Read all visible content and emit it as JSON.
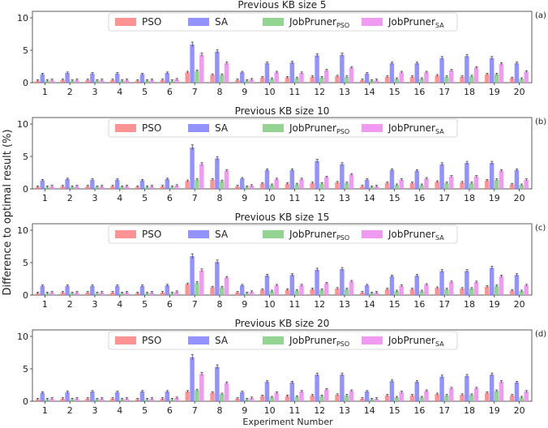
{
  "figure": {
    "ylabel": "Difference to optimal result (%)",
    "xlabel": "Experiment Number"
  },
  "series_colors": [
    "#ff8080",
    "#8080ff",
    "#80cc80",
    "#ee88ee"
  ],
  "chart_data": [
    {
      "type": "bar",
      "panel_label": "(a)",
      "title": "Previous KB size 5",
      "categories": [
        "1",
        "2",
        "3",
        "4",
        "5",
        "6",
        "7",
        "8",
        "9",
        "10",
        "11",
        "12",
        "13",
        "14",
        "15",
        "16",
        "17",
        "18",
        "19",
        "20"
      ],
      "ylim": [
        0,
        11
      ],
      "yticks": [
        "0",
        "5",
        "10"
      ],
      "grid": false,
      "legend": "top-center",
      "series": [
        {
          "name": "PSO",
          "sub": "",
          "values": [
            0.3,
            0.4,
            0.4,
            0.4,
            0.3,
            0.4,
            1.6,
            1.2,
            0.4,
            0.8,
            0.8,
            0.9,
            1.0,
            0.4,
            0.9,
            0.9,
            1.1,
            0.9,
            1.3,
            0.7
          ]
        },
        {
          "name": "SA",
          "sub": "",
          "values": [
            1.3,
            1.5,
            1.4,
            1.4,
            1.3,
            1.5,
            5.9,
            4.8,
            1.6,
            3.0,
            3.1,
            4.2,
            4.3,
            1.4,
            3.0,
            3.0,
            3.8,
            4.1,
            3.8,
            3.0
          ]
        },
        {
          "name": "JobPruner",
          "sub": "PSO",
          "values": [
            0.3,
            0.3,
            0.3,
            0.3,
            0.3,
            0.3,
            1.8,
            1.2,
            0.3,
            0.6,
            0.7,
            0.8,
            0.9,
            0.3,
            0.6,
            0.6,
            0.9,
            1.0,
            1.3,
            0.6
          ]
        },
        {
          "name": "JobPruner",
          "sub": "SA",
          "values": [
            0.4,
            0.4,
            0.4,
            0.4,
            0.4,
            0.5,
            4.3,
            3.0,
            0.5,
            1.6,
            1.5,
            1.9,
            2.3,
            0.4,
            1.6,
            1.6,
            1.9,
            2.3,
            2.9,
            1.7
          ]
        }
      ]
    },
    {
      "type": "bar",
      "panel_label": "(b)",
      "title": "Previous KB size 10",
      "categories": [
        "1",
        "2",
        "3",
        "4",
        "5",
        "6",
        "7",
        "8",
        "9",
        "10",
        "11",
        "12",
        "13",
        "14",
        "15",
        "16",
        "17",
        "18",
        "19",
        "20"
      ],
      "ylim": [
        0,
        11
      ],
      "yticks": [
        "0",
        "5",
        "10"
      ],
      "grid": false,
      "legend": "top-center",
      "series": [
        {
          "name": "PSO",
          "sub": "",
          "values": [
            0.3,
            0.4,
            0.4,
            0.4,
            0.3,
            0.4,
            1.2,
            1.4,
            0.4,
            0.8,
            0.8,
            0.9,
            1.0,
            0.4,
            0.9,
            0.9,
            1.1,
            1.0,
            1.3,
            0.7
          ]
        },
        {
          "name": "SA",
          "sub": "",
          "values": [
            1.3,
            1.5,
            1.4,
            1.4,
            1.3,
            1.5,
            6.4,
            4.7,
            1.6,
            2.9,
            2.9,
            4.3,
            3.8,
            1.4,
            2.9,
            2.8,
            3.8,
            4.0,
            4.0,
            2.9
          ]
        },
        {
          "name": "JobPruner",
          "sub": "PSO",
          "values": [
            0.3,
            0.3,
            0.3,
            0.3,
            0.3,
            0.3,
            1.4,
            1.2,
            0.3,
            0.6,
            0.7,
            0.8,
            0.9,
            0.3,
            0.6,
            0.6,
            0.9,
            0.9,
            1.4,
            0.6
          ]
        },
        {
          "name": "JobPruner",
          "sub": "SA",
          "values": [
            0.4,
            0.4,
            0.4,
            0.4,
            0.4,
            0.5,
            3.8,
            2.8,
            0.5,
            1.5,
            1.5,
            1.8,
            2.2,
            0.4,
            1.4,
            1.6,
            1.9,
            1.9,
            2.8,
            1.4
          ]
        }
      ]
    },
    {
      "type": "bar",
      "panel_label": "(c)",
      "title": "Previous KB size 15",
      "categories": [
        "1",
        "2",
        "3",
        "4",
        "5",
        "6",
        "7",
        "8",
        "9",
        "10",
        "11",
        "12",
        "13",
        "14",
        "15",
        "16",
        "17",
        "18",
        "19",
        "20"
      ],
      "ylim": [
        0,
        11
      ],
      "yticks": [
        "0",
        "5",
        "10"
      ],
      "grid": false,
      "legend": "top-center",
      "series": [
        {
          "name": "PSO",
          "sub": "",
          "values": [
            0.3,
            0.4,
            0.4,
            0.4,
            0.3,
            0.4,
            1.7,
            1.2,
            0.4,
            0.8,
            0.8,
            0.9,
            1.0,
            0.4,
            0.9,
            0.9,
            1.1,
            1.0,
            1.3,
            0.7
          ]
        },
        {
          "name": "SA",
          "sub": "",
          "values": [
            1.4,
            1.4,
            1.4,
            1.4,
            1.4,
            1.5,
            6.0,
            5.1,
            1.5,
            3.0,
            3.1,
            3.9,
            4.0,
            1.5,
            2.9,
            3.0,
            3.7,
            3.7,
            4.2,
            3.1
          ]
        },
        {
          "name": "JobPruner",
          "sub": "PSO",
          "values": [
            0.3,
            0.3,
            0.3,
            0.3,
            0.3,
            0.3,
            1.9,
            1.2,
            0.3,
            0.6,
            0.7,
            0.8,
            0.9,
            0.3,
            0.6,
            0.6,
            0.9,
            1.0,
            1.4,
            0.6
          ]
        },
        {
          "name": "JobPruner",
          "sub": "SA",
          "values": [
            0.4,
            0.4,
            0.4,
            0.4,
            0.4,
            0.5,
            3.8,
            2.7,
            0.5,
            1.5,
            1.5,
            1.8,
            2.1,
            0.4,
            1.4,
            1.6,
            2.0,
            2.0,
            2.9,
            1.5
          ]
        }
      ]
    },
    {
      "type": "bar",
      "panel_label": "(d)",
      "title": "Previous KB size 20",
      "categories": [
        "1",
        "2",
        "3",
        "4",
        "5",
        "6",
        "7",
        "8",
        "9",
        "10",
        "11",
        "12",
        "13",
        "14",
        "15",
        "16",
        "17",
        "18",
        "19",
        "20"
      ],
      "ylim": [
        0,
        11
      ],
      "yticks": [
        "0",
        "5",
        "10"
      ],
      "grid": false,
      "legend": "top-center",
      "series": [
        {
          "name": "PSO",
          "sub": "",
          "values": [
            0.3,
            0.4,
            0.4,
            0.4,
            0.3,
            0.4,
            1.5,
            1.3,
            0.4,
            0.8,
            0.8,
            0.9,
            1.0,
            0.4,
            0.9,
            0.9,
            1.1,
            1.0,
            1.3,
            0.9
          ]
        },
        {
          "name": "SA",
          "sub": "",
          "values": [
            1.3,
            1.4,
            1.5,
            1.4,
            1.5,
            1.5,
            6.8,
            5.3,
            1.4,
            3.0,
            2.9,
            4.1,
            4.1,
            1.5,
            3.1,
            3.0,
            3.8,
            3.9,
            4.1,
            2.9
          ]
        },
        {
          "name": "JobPruner",
          "sub": "PSO",
          "values": [
            0.3,
            0.3,
            0.3,
            0.3,
            0.3,
            0.3,
            1.7,
            1.1,
            0.3,
            0.6,
            0.7,
            0.8,
            0.9,
            0.3,
            0.6,
            0.6,
            0.9,
            1.0,
            1.6,
            0.6
          ]
        },
        {
          "name": "JobPruner",
          "sub": "SA",
          "values": [
            0.4,
            0.4,
            0.4,
            0.4,
            0.4,
            0.5,
            4.2,
            2.8,
            0.5,
            1.3,
            1.5,
            1.8,
            1.6,
            0.4,
            1.4,
            1.6,
            2.0,
            2.0,
            3.0,
            1.5
          ]
        }
      ]
    }
  ]
}
